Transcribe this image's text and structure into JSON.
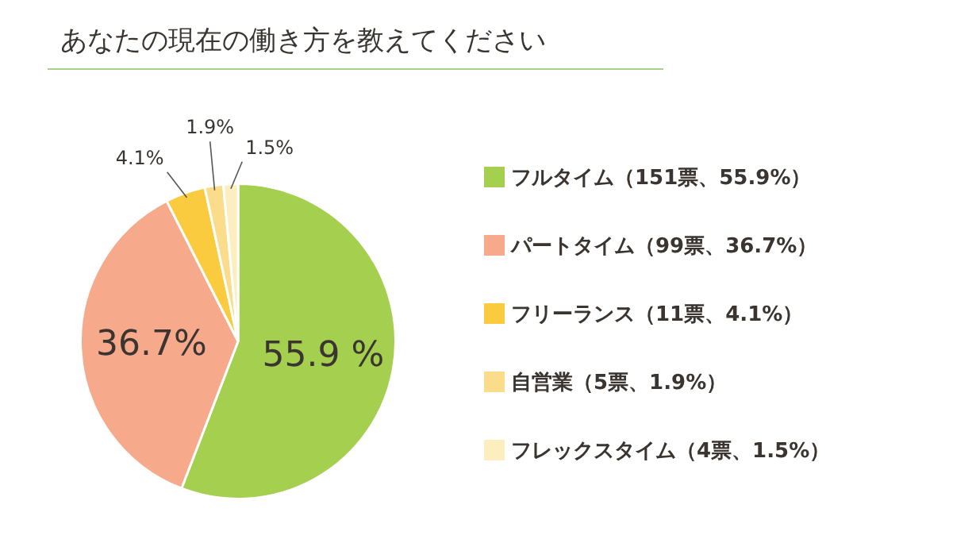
{
  "chart_data": {
    "type": "pie",
    "title": "あなたの現在の働き方を教えてください",
    "categories": [
      "フルタイム（151票、55.9%）",
      "パートタイム（99票、36.7%）",
      "フリーランス（11票、4.1%）",
      "自営業（5票、1.9%）",
      "フレックスタイム（4票、1.5%）"
    ],
    "values": [
      55.9,
      36.7,
      4.1,
      1.9,
      1.5
    ],
    "colors": [
      "#a5cf4f",
      "#f7a98c",
      "#fbcb3f",
      "#fbdc8a",
      "#fdeec0"
    ],
    "value_labels": [
      "55.9 %",
      "36.7%",
      "4.1%",
      "1.9%",
      "1.5%"
    ],
    "legend": "right"
  }
}
